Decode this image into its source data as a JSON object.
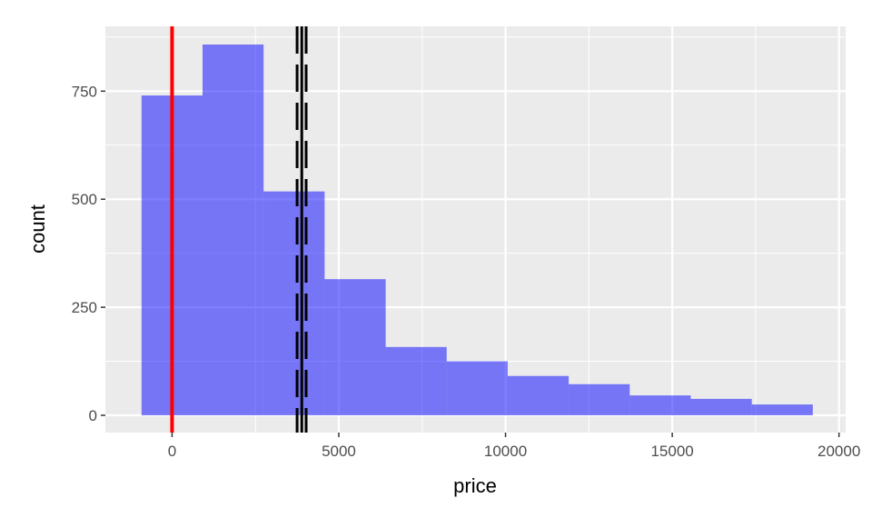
{
  "chart_data": {
    "type": "bar",
    "subtype": "histogram",
    "title": "",
    "xlabel": "price",
    "ylabel": "count",
    "xlim": [
      -2000,
      20200
    ],
    "ylim": [
      -40,
      900
    ],
    "x_ticks": [
      0,
      5000,
      10000,
      15000,
      20000
    ],
    "y_ticks": [
      0,
      250,
      500,
      750
    ],
    "grid": true,
    "bin_edges": [
      -915,
      915,
      2745,
      4575,
      6405,
      8235,
      10065,
      11895,
      13725,
      15555,
      17385,
      19215
    ],
    "values": [
      740,
      858,
      518,
      315,
      158,
      125,
      91,
      72,
      46,
      38,
      25
    ],
    "fill_color": "#0000ff",
    "fill_alpha": 0.5,
    "vlines": [
      {
        "x": 0,
        "color": "#ff0000",
        "style": "solid"
      },
      {
        "x": 3890,
        "color": "#000000",
        "style": "solid"
      },
      {
        "x": 3750,
        "color": "#000000",
        "style": "dashed"
      },
      {
        "x": 4020,
        "color": "#000000",
        "style": "dashed"
      }
    ],
    "panel_background": "#ebebeb"
  }
}
